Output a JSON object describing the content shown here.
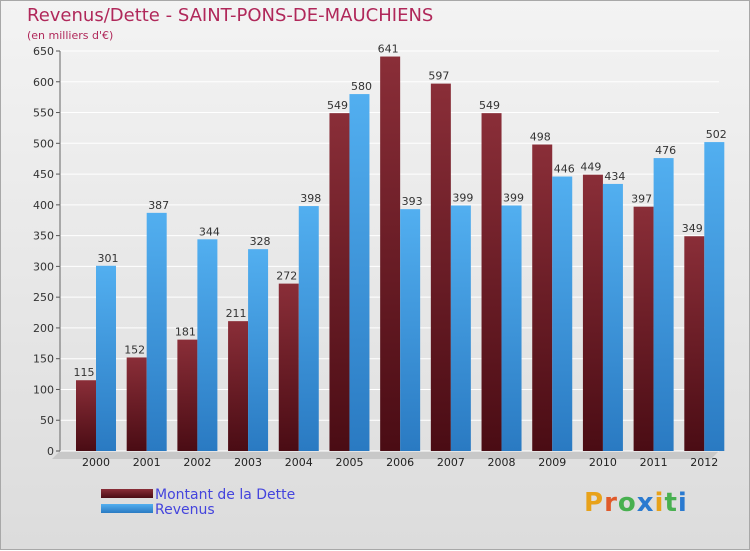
{
  "colors": {
    "dette": "#7a2630",
    "revenus": "#3d9fe6",
    "title": "#b0285a",
    "legend_text": "#4444dd"
  },
  "chart_data": {
    "type": "bar",
    "title": "Revenus/Dette - SAINT-PONS-DE-MAUCHIENS",
    "subtitle": "(en milliers d'€)",
    "categories": [
      "2000",
      "2001",
      "2002",
      "2003",
      "2004",
      "2005",
      "2006",
      "2007",
      "2008",
      "2009",
      "2010",
      "2011",
      "2012"
    ],
    "series": [
      {
        "name": "Montant de la Dette",
        "values": [
          115,
          152,
          181,
          211,
          272,
          549,
          641,
          597,
          549,
          498,
          449,
          397,
          349
        ]
      },
      {
        "name": "Revenus",
        "values": [
          301,
          387,
          344,
          328,
          398,
          580,
          393,
          399,
          399,
          446,
          434,
          476,
          502
        ]
      }
    ],
    "ylim": [
      0,
      650
    ],
    "yticks": [
      0,
      50,
      100,
      150,
      200,
      250,
      300,
      350,
      400,
      450,
      500,
      550,
      600,
      650
    ],
    "grid": true,
    "legend_position": "bottom-left"
  },
  "logo": {
    "letters": [
      "P",
      "r",
      "o",
      "x",
      "i",
      "t",
      "i"
    ],
    "letter_colors": [
      "#e8a21a",
      "#e05a2a",
      "#48b050",
      "#2a7ad0",
      "#e8a21a",
      "#48b050",
      "#2a7ad0"
    ]
  }
}
